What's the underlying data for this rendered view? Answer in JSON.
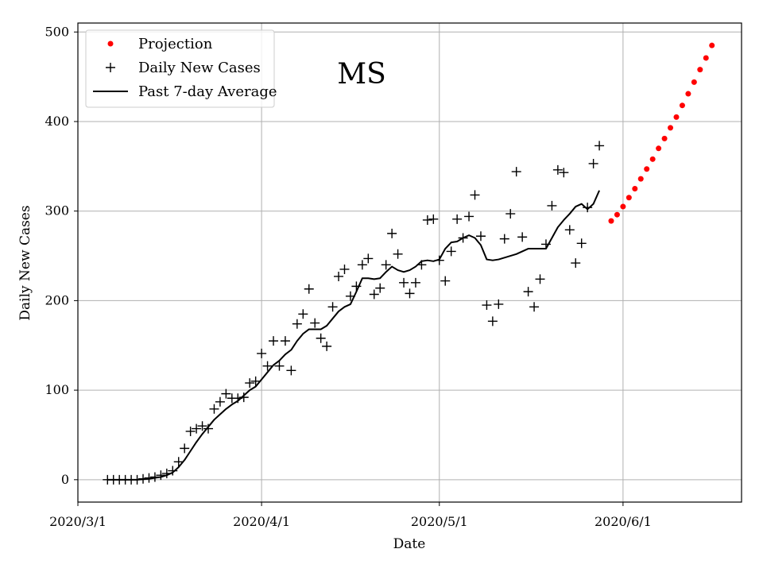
{
  "chart_data": {
    "type": "scatter",
    "title": "MS",
    "xlabel": "Date",
    "ylabel": "Daily New Cases",
    "grid": true,
    "legend_position": "top-left",
    "x_ticks": [
      "2020/3/1",
      "2020/4/1",
      "2020/5/1",
      "2020/6/1"
    ],
    "y_ticks": [
      0,
      100,
      200,
      300,
      400,
      500
    ],
    "xlim_days_from_2020_3_1": [
      0,
      112
    ],
    "ylim": [
      -25,
      510
    ],
    "colors": {
      "projection": "#ff0000",
      "cases": "#000000",
      "average": "#000000",
      "grid": "#b0b0b0"
    },
    "legend": [
      {
        "key": "projection",
        "label": "Projection",
        "marker": "dot"
      },
      {
        "key": "cases",
        "label": "Daily New Cases",
        "marker": "plus"
      },
      {
        "key": "average",
        "label": "Past 7-day Average",
        "marker": "line"
      }
    ],
    "series": [
      {
        "name": "Daily New Cases",
        "x_start_day": 5,
        "values": [
          0,
          0,
          0,
          0,
          0,
          0,
          1,
          2,
          3,
          5,
          7,
          10,
          20,
          35,
          54,
          57,
          60,
          57,
          79,
          87,
          96,
          91,
          91,
          92,
          108,
          110,
          141,
          127,
          155,
          127,
          155,
          122,
          174,
          185,
          213,
          175,
          158,
          149,
          193,
          227,
          235,
          205,
          216,
          240,
          247,
          207,
          214,
          240,
          275,
          252,
          220,
          208,
          220,
          240,
          290,
          291,
          245,
          222,
          255,
          291,
          270,
          294,
          318,
          272,
          195,
          177,
          196,
          269,
          297,
          344,
          271,
          210,
          193,
          224,
          263,
          306,
          346,
          343,
          279,
          242,
          264,
          304,
          353,
          373
        ]
      },
      {
        "name": "Past 7-day Average",
        "x_start_day": 5,
        "values": [
          0,
          0,
          0,
          0,
          0,
          0,
          0.5,
          1,
          2,
          3,
          5,
          8,
          14,
          22,
          32,
          42,
          51,
          59,
          67,
          73,
          79,
          84,
          88,
          94,
          100,
          104,
          112,
          120,
          128,
          133,
          140,
          145,
          155,
          163,
          168,
          168,
          168,
          172,
          180,
          188,
          193,
          196,
          210,
          225,
          225,
          224,
          225,
          232,
          238,
          234,
          232,
          234,
          238,
          244,
          245,
          244,
          246,
          258,
          265,
          266,
          270,
          273,
          270,
          262,
          246,
          245,
          246,
          248,
          250,
          252,
          255,
          258,
          258,
          258,
          258,
          270,
          282,
          290,
          297,
          305,
          308,
          302,
          308,
          323
        ]
      },
      {
        "name": "Projection",
        "x_start_day": 90,
        "values": [
          289,
          296,
          305,
          315,
          325,
          336,
          347,
          358,
          370,
          381,
          393,
          405,
          418,
          431,
          444,
          458,
          471,
          485
        ]
      }
    ]
  }
}
